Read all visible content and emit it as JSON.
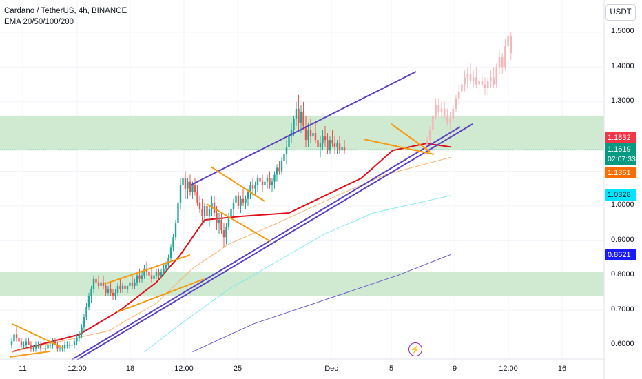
{
  "header": {
    "title": "Cardano / TetherUS, 4h, BINANCE",
    "indicator": "EMA 20/50/100/200"
  },
  "currency_button": "USDT",
  "y_ticks": [
    "1.5000",
    "1.4000",
    "1.3000",
    "1.0000",
    "0.9000",
    "0.8000",
    "0.7000",
    "0.6000"
  ],
  "x_ticks": [
    "11",
    "12:00",
    "18",
    "12:00",
    "25",
    "Dec",
    "5",
    "9",
    "12:00",
    "16"
  ],
  "price_badges": {
    "high_line": {
      "value": "1.1832",
      "color": "#f23645"
    },
    "last": {
      "value": "1.1619",
      "countdown": "02:07:33",
      "color": "#089981"
    },
    "ema20": {
      "value": "1.1361",
      "color": "#ff6d00"
    },
    "ema100": {
      "value": "1.0328",
      "color": "#00e5ff"
    },
    "ema200": {
      "value": "0.8621",
      "color": "#2962ff"
    }
  },
  "colors": {
    "bull": "#26a69a",
    "bear": "#ef5350",
    "ema20": "#e0101a",
    "ema50": "#f6b26b",
    "ema100": "#7fe9f2",
    "ema200": "#6a5acd",
    "channel": "#5c3fc4",
    "pattern": "#f59a12",
    "zone": "#c8e6c9",
    "projection": "#f4b7b9"
  },
  "chart_data": {
    "type": "candlestick",
    "symbol": "ADA/USDT",
    "interval": "4h",
    "ylim": [
      0.58,
      1.52
    ],
    "zones": [
      [
        1.16,
        1.26
      ],
      [
        0.74,
        0.81
      ]
    ],
    "series": [
      {
        "name": "EMA 20",
        "points": [
          [
            0,
            0.58
          ],
          [
            28,
            0.63
          ],
          [
            45,
            0.7
          ],
          [
            60,
            0.78
          ],
          [
            70,
            0.86
          ],
          [
            80,
            0.96
          ],
          [
            95,
            0.97
          ],
          [
            115,
            0.98
          ],
          [
            130,
            1.03
          ],
          [
            145,
            1.08
          ],
          [
            158,
            1.16
          ],
          [
            172,
            1.18
          ],
          [
            182,
            1.17
          ]
        ]
      },
      {
        "name": "EMA 50",
        "points": [
          [
            0,
            0.58
          ],
          [
            40,
            0.64
          ],
          [
            60,
            0.72
          ],
          [
            75,
            0.82
          ],
          [
            90,
            0.89
          ],
          [
            110,
            0.95
          ],
          [
            135,
            1.03
          ],
          [
            155,
            1.09
          ],
          [
            182,
            1.14
          ]
        ]
      },
      {
        "name": "EMA 100",
        "points": [
          [
            55,
            0.58
          ],
          [
            70,
            0.66
          ],
          [
            90,
            0.76
          ],
          [
            110,
            0.84
          ],
          [
            130,
            0.92
          ],
          [
            150,
            0.98
          ],
          [
            182,
            1.03
          ]
        ]
      },
      {
        "name": "EMA 200",
        "points": [
          [
            75,
            0.58
          ],
          [
            100,
            0.66
          ],
          [
            130,
            0.73
          ],
          [
            160,
            0.8
          ],
          [
            182,
            0.86
          ]
        ]
      }
    ],
    "candles": [
      [
        0.6,
        0.62,
        0.59,
        0.61
      ],
      [
        0.61,
        0.64,
        0.6,
        0.63
      ],
      [
        0.63,
        0.65,
        0.61,
        0.62
      ],
      [
        0.62,
        0.63,
        0.6,
        0.61
      ],
      [
        0.61,
        0.62,
        0.59,
        0.6
      ],
      [
        0.6,
        0.61,
        0.59,
        0.6
      ],
      [
        0.6,
        0.62,
        0.59,
        0.61
      ],
      [
        0.61,
        0.62,
        0.6,
        0.6
      ],
      [
        0.6,
        0.61,
        0.58,
        0.59
      ],
      [
        0.59,
        0.6,
        0.58,
        0.59
      ],
      [
        0.59,
        0.61,
        0.58,
        0.6
      ],
      [
        0.6,
        0.61,
        0.59,
        0.6
      ],
      [
        0.6,
        0.61,
        0.58,
        0.59
      ],
      [
        0.59,
        0.6,
        0.58,
        0.59
      ],
      [
        0.59,
        0.6,
        0.58,
        0.59
      ],
      [
        0.59,
        0.61,
        0.58,
        0.6
      ],
      [
        0.6,
        0.61,
        0.59,
        0.6
      ],
      [
        0.6,
        0.62,
        0.59,
        0.61
      ],
      [
        0.61,
        0.62,
        0.6,
        0.6
      ],
      [
        0.6,
        0.61,
        0.58,
        0.59
      ],
      [
        0.59,
        0.6,
        0.58,
        0.59
      ],
      [
        0.59,
        0.6,
        0.58,
        0.59
      ],
      [
        0.59,
        0.61,
        0.58,
        0.6
      ],
      [
        0.6,
        0.61,
        0.59,
        0.6
      ],
      [
        0.6,
        0.61,
        0.59,
        0.6
      ],
      [
        0.6,
        0.61,
        0.59,
        0.6
      ],
      [
        0.6,
        0.62,
        0.59,
        0.61
      ],
      [
        0.61,
        0.63,
        0.6,
        0.62
      ],
      [
        0.62,
        0.64,
        0.61,
        0.63
      ],
      [
        0.63,
        0.66,
        0.62,
        0.65
      ],
      [
        0.65,
        0.69,
        0.64,
        0.68
      ],
      [
        0.68,
        0.72,
        0.67,
        0.71
      ],
      [
        0.71,
        0.75,
        0.7,
        0.74
      ],
      [
        0.74,
        0.77,
        0.72,
        0.76
      ],
      [
        0.76,
        0.8,
        0.75,
        0.79
      ],
      [
        0.79,
        0.82,
        0.77,
        0.78
      ],
      [
        0.78,
        0.8,
        0.76,
        0.77
      ],
      [
        0.77,
        0.79,
        0.75,
        0.78
      ],
      [
        0.78,
        0.8,
        0.76,
        0.77
      ],
      [
        0.77,
        0.78,
        0.74,
        0.75
      ],
      [
        0.75,
        0.77,
        0.74,
        0.76
      ],
      [
        0.76,
        0.78,
        0.74,
        0.75
      ],
      [
        0.75,
        0.76,
        0.73,
        0.74
      ],
      [
        0.74,
        0.76,
        0.73,
        0.75
      ],
      [
        0.75,
        0.78,
        0.74,
        0.77
      ],
      [
        0.77,
        0.79,
        0.75,
        0.76
      ],
      [
        0.76,
        0.78,
        0.75,
        0.77
      ],
      [
        0.77,
        0.78,
        0.75,
        0.76
      ],
      [
        0.76,
        0.77,
        0.75,
        0.77
      ],
      [
        0.77,
        0.79,
        0.76,
        0.78
      ],
      [
        0.78,
        0.8,
        0.76,
        0.77
      ],
      [
        0.77,
        0.79,
        0.76,
        0.78
      ],
      [
        0.78,
        0.81,
        0.77,
        0.8
      ],
      [
        0.8,
        0.82,
        0.78,
        0.79
      ],
      [
        0.79,
        0.81,
        0.78,
        0.8
      ],
      [
        0.8,
        0.83,
        0.79,
        0.82
      ],
      [
        0.82,
        0.84,
        0.8,
        0.81
      ],
      [
        0.81,
        0.83,
        0.79,
        0.8
      ],
      [
        0.8,
        0.82,
        0.78,
        0.79
      ],
      [
        0.79,
        0.81,
        0.78,
        0.8
      ],
      [
        0.8,
        0.82,
        0.79,
        0.81
      ],
      [
        0.81,
        0.82,
        0.79,
        0.8
      ],
      [
        0.8,
        0.82,
        0.79,
        0.81
      ],
      [
        0.81,
        0.83,
        0.8,
        0.82
      ],
      [
        0.82,
        0.84,
        0.81,
        0.83
      ],
      [
        0.83,
        0.86,
        0.82,
        0.85
      ],
      [
        0.85,
        0.89,
        0.84,
        0.88
      ],
      [
        0.88,
        0.92,
        0.87,
        0.91
      ],
      [
        0.91,
        0.96,
        0.9,
        0.95
      ],
      [
        0.95,
        1.02,
        0.94,
        1.01
      ],
      [
        1.01,
        1.08,
        0.99,
        1.06
      ],
      [
        1.06,
        1.15,
        1.04,
        1.08
      ],
      [
        1.08,
        1.1,
        1.02,
        1.05
      ],
      [
        1.05,
        1.08,
        1.02,
        1.07
      ],
      [
        1.07,
        1.09,
        1.03,
        1.04
      ],
      [
        1.04,
        1.07,
        1.02,
        1.06
      ],
      [
        1.06,
        1.08,
        1.03,
        1.04
      ],
      [
        1.04,
        1.06,
        1.0,
        1.01
      ],
      [
        1.01,
        1.03,
        0.98,
        0.99
      ],
      [
        0.99,
        1.02,
        0.95,
        0.97
      ],
      [
        0.97,
        1.01,
        0.95,
        1.0
      ],
      [
        1.0,
        1.02,
        0.96,
        0.97
      ],
      [
        0.97,
        1.0,
        0.94,
        0.99
      ],
      [
        0.99,
        1.03,
        0.97,
        1.01
      ],
      [
        1.01,
        1.03,
        0.97,
        0.98
      ],
      [
        0.98,
        1.0,
        0.93,
        0.95
      ],
      [
        0.95,
        0.98,
        0.92,
        0.96
      ],
      [
        0.96,
        0.98,
        0.92,
        0.93
      ],
      [
        0.93,
        0.95,
        0.88,
        0.91
      ],
      [
        0.91,
        0.95,
        0.89,
        0.94
      ],
      [
        0.94,
        0.98,
        0.93,
        0.97
      ],
      [
        0.97,
        1.0,
        0.95,
        0.99
      ],
      [
        0.99,
        1.02,
        0.97,
        1.01
      ],
      [
        1.01,
        1.04,
        0.99,
        1.03
      ],
      [
        1.03,
        1.04,
        0.99,
        1.0
      ],
      [
        1.0,
        1.03,
        0.98,
        1.02
      ],
      [
        1.02,
        1.05,
        1.0,
        1.01
      ],
      [
        1.01,
        1.03,
        0.99,
        1.02
      ],
      [
        1.02,
        1.05,
        1.0,
        1.04
      ],
      [
        1.04,
        1.07,
        1.02,
        1.06
      ],
      [
        1.06,
        1.08,
        1.03,
        1.05
      ],
      [
        1.05,
        1.07,
        1.03,
        1.06
      ],
      [
        1.06,
        1.09,
        1.04,
        1.08
      ],
      [
        1.08,
        1.1,
        1.05,
        1.07
      ],
      [
        1.07,
        1.09,
        1.04,
        1.06
      ],
      [
        1.06,
        1.08,
        1.04,
        1.07
      ],
      [
        1.07,
        1.09,
        1.05,
        1.08
      ],
      [
        1.08,
        1.1,
        1.05,
        1.06
      ],
      [
        1.06,
        1.08,
        1.04,
        1.07
      ],
      [
        1.07,
        1.1,
        1.05,
        1.09
      ],
      [
        1.09,
        1.12,
        1.07,
        1.11
      ],
      [
        1.11,
        1.13,
        1.09,
        1.1
      ],
      [
        1.1,
        1.14,
        1.09,
        1.13
      ],
      [
        1.13,
        1.16,
        1.11,
        1.15
      ],
      [
        1.15,
        1.19,
        1.12,
        1.17
      ],
      [
        1.17,
        1.22,
        1.15,
        1.2
      ],
      [
        1.2,
        1.24,
        1.18,
        1.22
      ],
      [
        1.22,
        1.26,
        1.2,
        1.25
      ],
      [
        1.25,
        1.3,
        1.23,
        1.28
      ],
      [
        1.28,
        1.32,
        1.22,
        1.24
      ],
      [
        1.24,
        1.29,
        1.21,
        1.27
      ],
      [
        1.27,
        1.3,
        1.22,
        1.23
      ],
      [
        1.23,
        1.26,
        1.17,
        1.19
      ],
      [
        1.19,
        1.24,
        1.17,
        1.22
      ],
      [
        1.22,
        1.25,
        1.18,
        1.2
      ],
      [
        1.2,
        1.23,
        1.17,
        1.21
      ],
      [
        1.21,
        1.24,
        1.18,
        1.19
      ],
      [
        1.19,
        1.22,
        1.16,
        1.17
      ],
      [
        1.17,
        1.2,
        1.14,
        1.18
      ],
      [
        1.18,
        1.22,
        1.16,
        1.2
      ],
      [
        1.2,
        1.23,
        1.17,
        1.19
      ],
      [
        1.19,
        1.21,
        1.15,
        1.16
      ],
      [
        1.16,
        1.2,
        1.15,
        1.19
      ],
      [
        1.19,
        1.22,
        1.17,
        1.18
      ],
      [
        1.18,
        1.2,
        1.15,
        1.17
      ],
      [
        1.17,
        1.19,
        1.15,
        1.18
      ],
      [
        1.18,
        1.2,
        1.15,
        1.16
      ],
      [
        1.16,
        1.18,
        1.14,
        1.17
      ],
      [
        1.17,
        1.19,
        1.15,
        1.16
      ]
    ],
    "projection_candles": [
      [
        1.17,
        1.2,
        1.16,
        1.19
      ],
      [
        1.19,
        1.23,
        1.18,
        1.22
      ],
      [
        1.22,
        1.27,
        1.21,
        1.26
      ],
      [
        1.26,
        1.31,
        1.25,
        1.29
      ],
      [
        1.29,
        1.31,
        1.26,
        1.27
      ],
      [
        1.27,
        1.3,
        1.25,
        1.28
      ],
      [
        1.28,
        1.3,
        1.25,
        1.26
      ],
      [
        1.26,
        1.28,
        1.23,
        1.24
      ],
      [
        1.24,
        1.27,
        1.22,
        1.25
      ],
      [
        1.25,
        1.29,
        1.24,
        1.28
      ],
      [
        1.28,
        1.32,
        1.27,
        1.31
      ],
      [
        1.31,
        1.35,
        1.29,
        1.33
      ],
      [
        1.33,
        1.37,
        1.31,
        1.35
      ],
      [
        1.35,
        1.39,
        1.33,
        1.37
      ],
      [
        1.37,
        1.4,
        1.34,
        1.38
      ],
      [
        1.38,
        1.41,
        1.35,
        1.36
      ],
      [
        1.36,
        1.39,
        1.34,
        1.37
      ],
      [
        1.37,
        1.4,
        1.34,
        1.35
      ],
      [
        1.35,
        1.38,
        1.33,
        1.36
      ],
      [
        1.36,
        1.38,
        1.34,
        1.35
      ],
      [
        1.35,
        1.37,
        1.32,
        1.34
      ],
      [
        1.34,
        1.37,
        1.32,
        1.36
      ],
      [
        1.36,
        1.39,
        1.34,
        1.37
      ],
      [
        1.37,
        1.4,
        1.34,
        1.35
      ],
      [
        1.35,
        1.41,
        1.34,
        1.4
      ],
      [
        1.4,
        1.45,
        1.38,
        1.43
      ],
      [
        1.43,
        1.44,
        1.38,
        1.4
      ],
      [
        1.4,
        1.48,
        1.39,
        1.46
      ],
      [
        1.46,
        1.5,
        1.44,
        1.49
      ],
      [
        1.49,
        1.5,
        1.42,
        1.44
      ]
    ]
  }
}
